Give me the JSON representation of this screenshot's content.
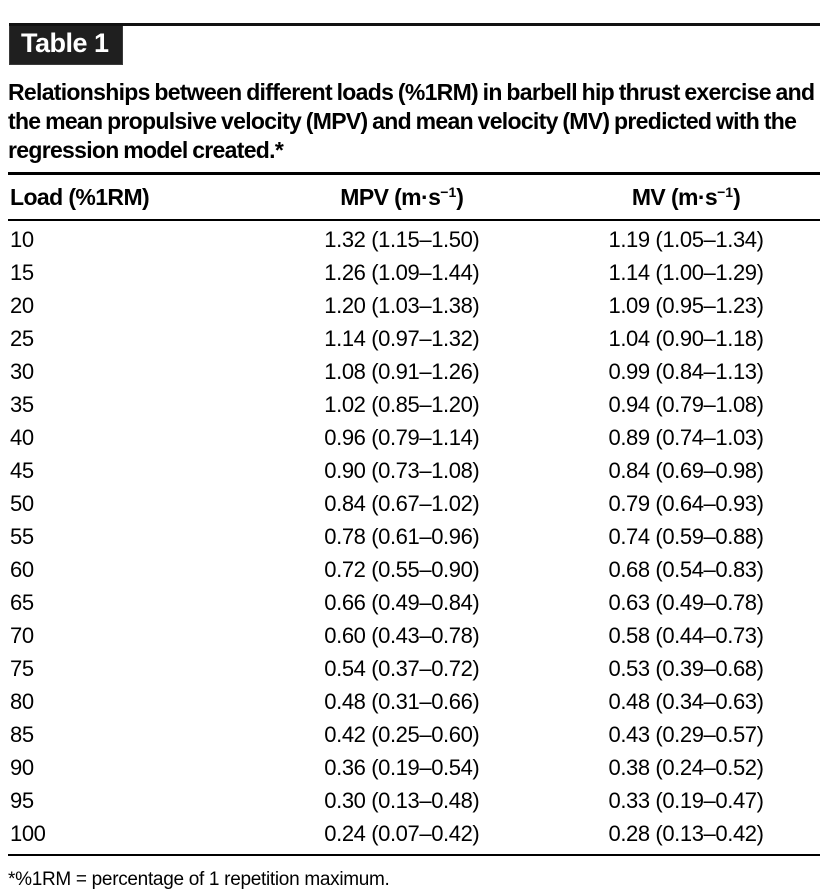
{
  "badge": {
    "label": "Table 1"
  },
  "title": "Relationships between different loads (%1RM) in barbell hip thrust exercise and the mean propulsive velocity (MPV) and mean velocity (MV) predicted with the regression model created.*",
  "table": {
    "columns": {
      "load_label": "Load (%1RM)",
      "mpv_label_pre": "MPV (m·s",
      "mpv_label_sup": "−1",
      "mpv_label_post": ")",
      "mv_label_pre": "MV (m·s",
      "mv_label_sup": "−1",
      "mv_label_post": ")"
    },
    "rows": [
      {
        "load": "10",
        "mpv": "1.32 (1.15–1.50)",
        "mv": "1.19 (1.05–1.34)"
      },
      {
        "load": "15",
        "mpv": "1.26 (1.09–1.44)",
        "mv": "1.14 (1.00–1.29)"
      },
      {
        "load": "20",
        "mpv": "1.20 (1.03–1.38)",
        "mv": "1.09 (0.95–1.23)"
      },
      {
        "load": "25",
        "mpv": "1.14 (0.97–1.32)",
        "mv": "1.04 (0.90–1.18)"
      },
      {
        "load": "30",
        "mpv": "1.08 (0.91–1.26)",
        "mv": "0.99 (0.84–1.13)"
      },
      {
        "load": "35",
        "mpv": "1.02 (0.85–1.20)",
        "mv": "0.94 (0.79–1.08)"
      },
      {
        "load": "40",
        "mpv": "0.96 (0.79–1.14)",
        "mv": "0.89 (0.74–1.03)"
      },
      {
        "load": "45",
        "mpv": "0.90 (0.73–1.08)",
        "mv": "0.84 (0.69–0.98)"
      },
      {
        "load": "50",
        "mpv": "0.84 (0.67–1.02)",
        "mv": "0.79 (0.64–0.93)"
      },
      {
        "load": "55",
        "mpv": "0.78 (0.61–0.96)",
        "mv": "0.74 (0.59–0.88)"
      },
      {
        "load": "60",
        "mpv": "0.72 (0.55–0.90)",
        "mv": "0.68 (0.54–0.83)"
      },
      {
        "load": "65",
        "mpv": "0.66 (0.49–0.84)",
        "mv": "0.63 (0.49–0.78)"
      },
      {
        "load": "70",
        "mpv": "0.60 (0.43–0.78)",
        "mv": "0.58 (0.44–0.73)"
      },
      {
        "load": "75",
        "mpv": "0.54 (0.37–0.72)",
        "mv": "0.53 (0.39–0.68)"
      },
      {
        "load": "80",
        "mpv": "0.48 (0.31–0.66)",
        "mv": "0.48 (0.34–0.63)"
      },
      {
        "load": "85",
        "mpv": "0.42 (0.25–0.60)",
        "mv": "0.43 (0.29–0.57)"
      },
      {
        "load": "90",
        "mpv": "0.36 (0.19–0.54)",
        "mv": "0.38 (0.24–0.52)"
      },
      {
        "load": "95",
        "mpv": "0.30 (0.13–0.48)",
        "mv": "0.33 (0.19–0.47)"
      },
      {
        "load": "100",
        "mpv": "0.24 (0.07–0.42)",
        "mv": "0.28 (0.13–0.42)"
      }
    ]
  },
  "footnote": "*%1RM = percentage of 1 repetition maximum."
}
